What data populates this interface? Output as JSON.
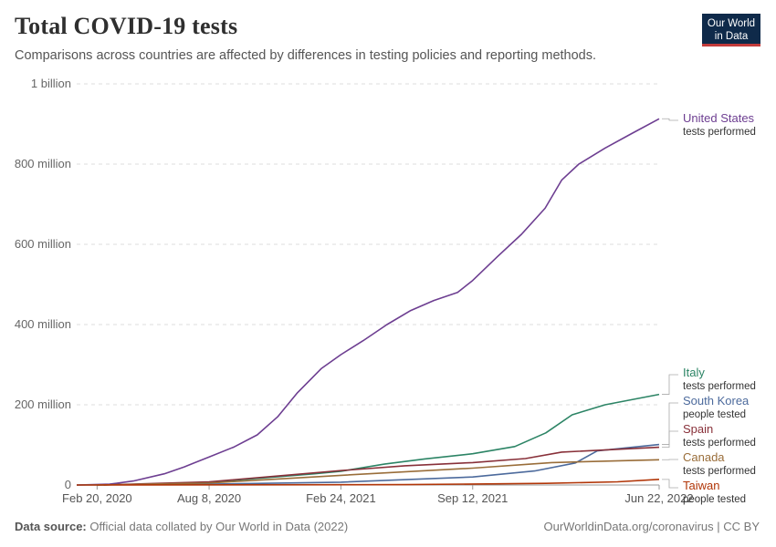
{
  "header": {
    "title": "Total COVID-19 tests",
    "subtitle": "Comparisons across countries are affected by differences in testing policies and reporting methods.",
    "logo_line1": "Our World",
    "logo_line2": "in Data"
  },
  "footer": {
    "source_label": "Data source:",
    "source_text": "Official data collated by Our World in Data (2022)",
    "right_text": "OurWorldinData.org/coronavirus | CC BY"
  },
  "colors": {
    "united_states": "#6d3e91",
    "italy": "#2c8465",
    "south_korea": "#4c6a9c",
    "spain": "#883039",
    "canada": "#996d39",
    "taiwan": "#b13507"
  },
  "chart_data": {
    "type": "line",
    "title": "Total COVID-19 tests",
    "x_ticks": [
      "Feb 20, 2020",
      "Aug 8, 2020",
      "Feb 24, 2021",
      "Sep 12, 2021",
      "Jun 22, 2022"
    ],
    "x_range": [
      "2020-01-20",
      "2022-06-22"
    ],
    "y_ticks": [
      "0",
      "200 million",
      "400 million",
      "600 million",
      "800 million",
      "1 billion"
    ],
    "ylim": [
      0,
      1000000000
    ],
    "grid": true,
    "legend": "right",
    "series": [
      {
        "name": "United States",
        "sublabel": "tests performed",
        "color": "#6d3e91",
        "points": [
          [
            "2020-01-20",
            0
          ],
          [
            "2020-03-10",
            2000000
          ],
          [
            "2020-04-15",
            10000000
          ],
          [
            "2020-06-01",
            28000000
          ],
          [
            "2020-07-01",
            45000000
          ],
          [
            "2020-08-08",
            70000000
          ],
          [
            "2020-09-15",
            95000000
          ],
          [
            "2020-10-20",
            125000000
          ],
          [
            "2020-11-20",
            170000000
          ],
          [
            "2020-12-20",
            230000000
          ],
          [
            "2021-01-25",
            290000000
          ],
          [
            "2021-02-24",
            325000000
          ],
          [
            "2021-03-30",
            360000000
          ],
          [
            "2021-05-05",
            400000000
          ],
          [
            "2021-06-10",
            435000000
          ],
          [
            "2021-07-15",
            460000000
          ],
          [
            "2021-08-20",
            480000000
          ],
          [
            "2021-09-12",
            510000000
          ],
          [
            "2021-10-20",
            570000000
          ],
          [
            "2021-11-25",
            625000000
          ],
          [
            "2021-12-31",
            690000000
          ],
          [
            "2022-01-25",
            760000000
          ],
          [
            "2022-02-20",
            800000000
          ],
          [
            "2022-04-01",
            840000000
          ],
          [
            "2022-05-10",
            875000000
          ],
          [
            "2022-06-22",
            913000000
          ]
        ]
      },
      {
        "name": "Italy",
        "sublabel": "tests performed",
        "color": "#2c8465",
        "points": [
          [
            "2020-02-20",
            0
          ],
          [
            "2020-05-01",
            2000000
          ],
          [
            "2020-08-08",
            7000000
          ],
          [
            "2020-11-01",
            18000000
          ],
          [
            "2021-01-15",
            28000000
          ],
          [
            "2021-02-24",
            34000000
          ],
          [
            "2021-05-01",
            52000000
          ],
          [
            "2021-07-01",
            65000000
          ],
          [
            "2021-09-12",
            78000000
          ],
          [
            "2021-11-15",
            96000000
          ],
          [
            "2022-01-01",
            130000000
          ],
          [
            "2022-02-10",
            175000000
          ],
          [
            "2022-04-01",
            200000000
          ],
          [
            "2022-06-22",
            226000000
          ]
        ]
      },
      {
        "name": "South Korea",
        "sublabel": "people tested",
        "color": "#4c6a9c",
        "points": [
          [
            "2020-01-20",
            0
          ],
          [
            "2020-08-08",
            2000000
          ],
          [
            "2021-02-24",
            7000000
          ],
          [
            "2021-09-12",
            20000000
          ],
          [
            "2021-12-15",
            35000000
          ],
          [
            "2022-02-15",
            55000000
          ],
          [
            "2022-03-20",
            85000000
          ],
          [
            "2022-06-22",
            101000000
          ]
        ]
      },
      {
        "name": "Spain",
        "sublabel": "tests performed",
        "color": "#883039",
        "points": [
          [
            "2020-03-01",
            0
          ],
          [
            "2020-08-08",
            8000000
          ],
          [
            "2020-12-01",
            24000000
          ],
          [
            "2021-02-24",
            36000000
          ],
          [
            "2021-06-01",
            48000000
          ],
          [
            "2021-09-12",
            56000000
          ],
          [
            "2021-12-01",
            66000000
          ],
          [
            "2022-01-25",
            82000000
          ],
          [
            "2022-06-22",
            94000000
          ]
        ]
      },
      {
        "name": "Canada",
        "sublabel": "tests performed",
        "color": "#996d39",
        "points": [
          [
            "2020-02-20",
            0
          ],
          [
            "2020-08-08",
            5000000
          ],
          [
            "2021-02-24",
            24000000
          ],
          [
            "2021-09-12",
            42000000
          ],
          [
            "2022-01-10",
            56000000
          ],
          [
            "2022-06-22",
            63000000
          ]
        ]
      },
      {
        "name": "Taiwan",
        "sublabel": "people tested",
        "color": "#b13507",
        "points": [
          [
            "2020-01-20",
            0
          ],
          [
            "2021-06-01",
            1000000
          ],
          [
            "2022-01-01",
            4000000
          ],
          [
            "2022-04-20",
            8000000
          ],
          [
            "2022-06-22",
            14000000
          ]
        ]
      }
    ]
  }
}
